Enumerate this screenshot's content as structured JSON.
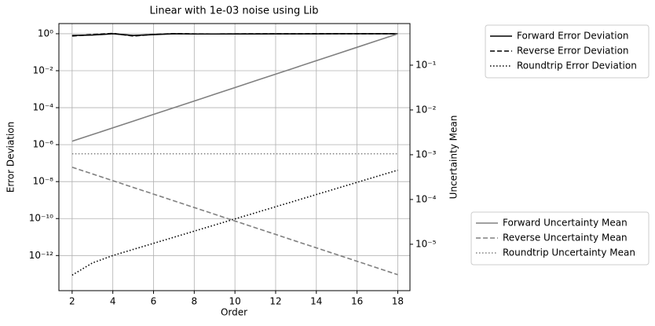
{
  "chart_data": {
    "type": "line",
    "title": "Linear with 1e-03 noise using Lib",
    "xlabel": "Order",
    "ylabel": "Error Deviation",
    "y2label": "Uncertainty Mean",
    "x": [
      2,
      3,
      4,
      5,
      6,
      7,
      8,
      9,
      10,
      11,
      12,
      13,
      14,
      15,
      16,
      17,
      18
    ],
    "xlim": [
      1.35,
      18.6
    ],
    "xticks": [
      2,
      4,
      6,
      8,
      10,
      12,
      14,
      16,
      18
    ],
    "ylog": true,
    "ylim": [
      1.26e-14,
      3.55
    ],
    "yticks": [
      {
        "value": 1,
        "label": "10⁰"
      },
      {
        "value": 0.01,
        "label": "10⁻²"
      },
      {
        "value": 0.0001,
        "label": "10⁻⁴"
      },
      {
        "value": 1e-06,
        "label": "10⁻⁶"
      },
      {
        "value": 1e-08,
        "label": "10⁻⁸"
      },
      {
        "value": 1e-10,
        "label": "10⁻¹⁰"
      },
      {
        "value": 1e-12,
        "label": "10⁻¹²"
      }
    ],
    "y2log": true,
    "y2lim": [
      9.2e-07,
      0.85
    ],
    "y2ticks": [
      {
        "value": 0.1,
        "label": "10⁻¹"
      },
      {
        "value": 0.01,
        "label": "10⁻²"
      },
      {
        "value": 0.001,
        "label": "10⁻³"
      },
      {
        "value": 0.0001,
        "label": "10⁻⁴"
      },
      {
        "value": 1e-05,
        "label": "10⁻⁵"
      }
    ],
    "grid": true,
    "series": [
      {
        "name": "Forward Error Deviation",
        "color": "#000000",
        "linestyle": "solid",
        "axis": "y",
        "values": [
          0.8,
          0.85,
          1.0,
          0.8,
          0.9,
          1.0,
          0.97,
          0.97,
          0.98,
          0.98,
          0.99,
          0.99,
          0.99,
          1.0,
          1.0,
          1.0,
          1.0
        ]
      },
      {
        "name": "Reverse Error Deviation",
        "color": "#000000",
        "linestyle": "dashed",
        "axis": "y",
        "values": [
          0.75,
          0.9,
          1.05,
          0.75,
          0.92,
          1.02,
          0.98,
          0.97,
          0.98,
          0.99,
          0.99,
          0.99,
          1.0,
          1.0,
          1.0,
          1.0,
          1.0
        ]
      },
      {
        "name": "Roundtrip Error Deviation",
        "color": "#000000",
        "linestyle": "dotted",
        "axis": "y",
        "values": [
          8.7e-14,
          4e-13,
          1e-12,
          2.14e-12,
          4.57e-12,
          9.77e-12,
          2.09e-11,
          4.47e-11,
          9.55e-11,
          2.04e-10,
          4.37e-10,
          9.33e-10,
          2e-09,
          4.27e-09,
          9.12e-09,
          1.95e-08,
          4.17e-08
        ]
      },
      {
        "name": "Forward Uncertainty Mean",
        "color": "#808080",
        "linestyle": "solid",
        "axis": "y2",
        "values": [
          0.002,
          0.00282,
          0.00398,
          0.00562,
          0.00794,
          0.0112,
          0.0158,
          0.0224,
          0.0316,
          0.0447,
          0.0631,
          0.0891,
          0.126,
          0.178,
          0.251,
          0.355,
          0.501
        ]
      },
      {
        "name": "Reverse Uncertainty Mean",
        "color": "#808080",
        "linestyle": "dashed",
        "axis": "y2",
        "values": [
          0.000525,
          0.000372,
          0.000263,
          0.000186,
          0.000132,
          9.33e-05,
          6.61e-05,
          4.68e-05,
          3.31e-05,
          2.34e-05,
          1.66e-05,
          1.17e-05,
          8.32e-06,
          5.89e-06,
          4.17e-06,
          2.95e-06,
          2.09e-06
        ]
      },
      {
        "name": "Roundtrip Uncertainty Mean",
        "color": "#808080",
        "linestyle": "dotted",
        "axis": "y2",
        "values": [
          0.00105,
          0.00105,
          0.00105,
          0.00105,
          0.00105,
          0.00105,
          0.00105,
          0.00105,
          0.00105,
          0.00105,
          0.00105,
          0.00105,
          0.00105,
          0.00105,
          0.00105,
          0.00105,
          0.00105
        ]
      }
    ]
  }
}
